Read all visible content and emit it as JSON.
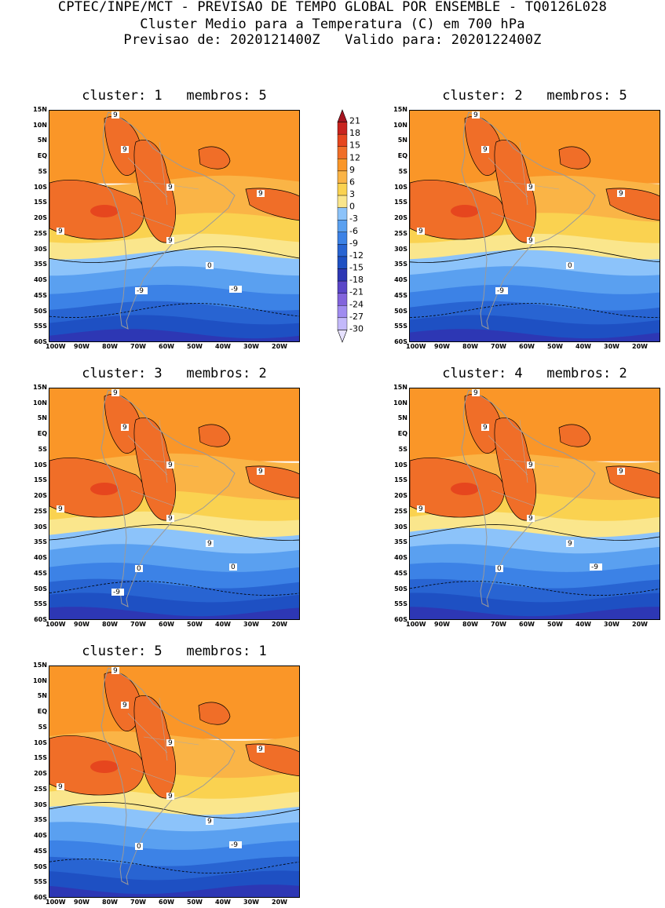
{
  "header": {
    "line1": "CPTEC/INPE/MCT - PREVISAO DE TEMPO GLOBAL POR ENSEMBLE - TQ0126L028",
    "line2": "Cluster Medio para a Temperatura (C) em 700 hPa",
    "line3": "Previsao de: 2020121400Z   Valido para: 2020122400Z"
  },
  "axes": {
    "lat_labels": [
      "15N",
      "10N",
      "5N",
      "EQ",
      "5S",
      "10S",
      "15S",
      "20S",
      "25S",
      "30S",
      "35S",
      "40S",
      "45S",
      "50S",
      "55S",
      "60S"
    ],
    "lon_labels": [
      "100W",
      "90W",
      "80W",
      "70W",
      "60W",
      "50W",
      "40W",
      "30W",
      "20W"
    ]
  },
  "colorbar": {
    "labels": [
      "21",
      "18",
      "15",
      "12",
      "9",
      "6",
      "3",
      "0",
      "-3",
      "-6",
      "-9",
      "-12",
      "-15",
      "-18",
      "-21",
      "-24",
      "-27",
      "-30"
    ],
    "colors": [
      "#a51420",
      "#c8231e",
      "#e6461e",
      "#f06e28",
      "#fa9628",
      "#fab446",
      "#fad250",
      "#fae68c",
      "#8cc3fa",
      "#5aa0f0",
      "#3c82e6",
      "#2864d2",
      "#1e50c3",
      "#2d37b4",
      "#5a46c8",
      "#8264dc",
      "#a08cf0",
      "#c3b9fa",
      "#e6e1ff"
    ]
  },
  "panels": [
    {
      "title": "cluster: 1   membros: 5",
      "contour_labels": [
        "9",
        "9",
        "9",
        "9",
        "9",
        "9",
        "0",
        "-9",
        "-9"
      ]
    },
    {
      "title": "cluster: 2   membros: 5",
      "contour_labels": [
        "9",
        "9",
        "9",
        "9",
        "9",
        "9",
        "0",
        "-9"
      ]
    },
    {
      "title": "cluster: 3   membros: 2",
      "contour_labels": [
        "9",
        "9",
        "9",
        "9",
        "9",
        "9",
        "9",
        "0",
        "0",
        "-9"
      ]
    },
    {
      "title": "cluster: 4   membros: 2",
      "contour_labels": [
        "9",
        "9",
        "9",
        "9",
        "9",
        "9",
        "9",
        "0",
        "-9"
      ]
    },
    {
      "title": "cluster: 5   membros: 1",
      "contour_labels": [
        "9",
        "9",
        "9",
        "9",
        "9",
        "9",
        "9",
        "0",
        "-9"
      ]
    }
  ]
}
